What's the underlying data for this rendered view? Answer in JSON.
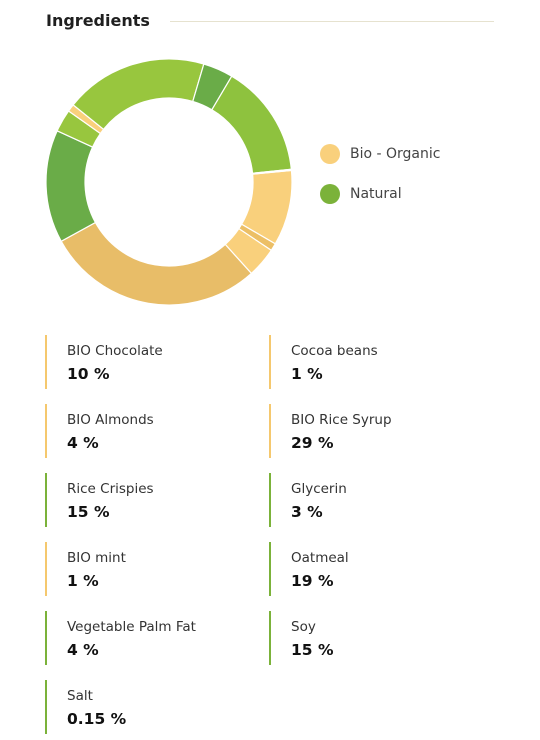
{
  "section": {
    "title": "Ingredients"
  },
  "colors": {
    "bio_organic": "#f5c86e",
    "natural": "#7bb23a"
  },
  "legend": [
    {
      "label": "Bio - Organic",
      "color": "#f9d07c"
    },
    {
      "label": "Natural",
      "color": "#7bb23a"
    }
  ],
  "ingredients": [
    {
      "name": "BIO Chocolate",
      "value": "10 %",
      "category": "bio"
    },
    {
      "name": "Cocoa beans",
      "value": "1 %",
      "category": "bio"
    },
    {
      "name": "BIO Almonds",
      "value": "4 %",
      "category": "bio"
    },
    {
      "name": "BIO Rice Syrup",
      "value": "29 %",
      "category": "bio"
    },
    {
      "name": "Rice Crispies",
      "value": "15 %",
      "category": "natural"
    },
    {
      "name": "Glycerin",
      "value": "3 %",
      "category": "natural"
    },
    {
      "name": "BIO mint",
      "value": "1 %",
      "category": "bio"
    },
    {
      "name": "Oatmeal",
      "value": "19 %",
      "category": "natural"
    },
    {
      "name": "Vegetable Palm Fat",
      "value": "4 %",
      "category": "natural"
    },
    {
      "name": "Soy",
      "value": "15 %",
      "category": "natural"
    },
    {
      "name": "Salt",
      "value": "0.15 %",
      "category": "natural"
    }
  ],
  "chart_data": {
    "type": "pie",
    "title": "",
    "legend_position": "right",
    "slices": [
      {
        "value": 10,
        "color": "#f9d07c",
        "category": "bio"
      },
      {
        "value": 1,
        "color": "#ecbf66",
        "category": "bio"
      },
      {
        "value": 4,
        "color": "#f9d07c",
        "category": "bio"
      },
      {
        "value": 29,
        "color": "#e8bd68",
        "category": "bio"
      },
      {
        "value": 15,
        "color": "#6aac48",
        "category": "natural"
      },
      {
        "value": 3,
        "color": "#98c63e",
        "category": "natural"
      },
      {
        "value": 1,
        "color": "#f9d07c",
        "category": "bio"
      },
      {
        "value": 19,
        "color": "#98c63e",
        "category": "natural"
      },
      {
        "value": 4,
        "color": "#6aac48",
        "category": "natural"
      },
      {
        "value": 15,
        "color": "#8ec23e",
        "category": "natural"
      },
      {
        "value": 0.15,
        "color": "#98c63e",
        "category": "natural"
      }
    ]
  }
}
